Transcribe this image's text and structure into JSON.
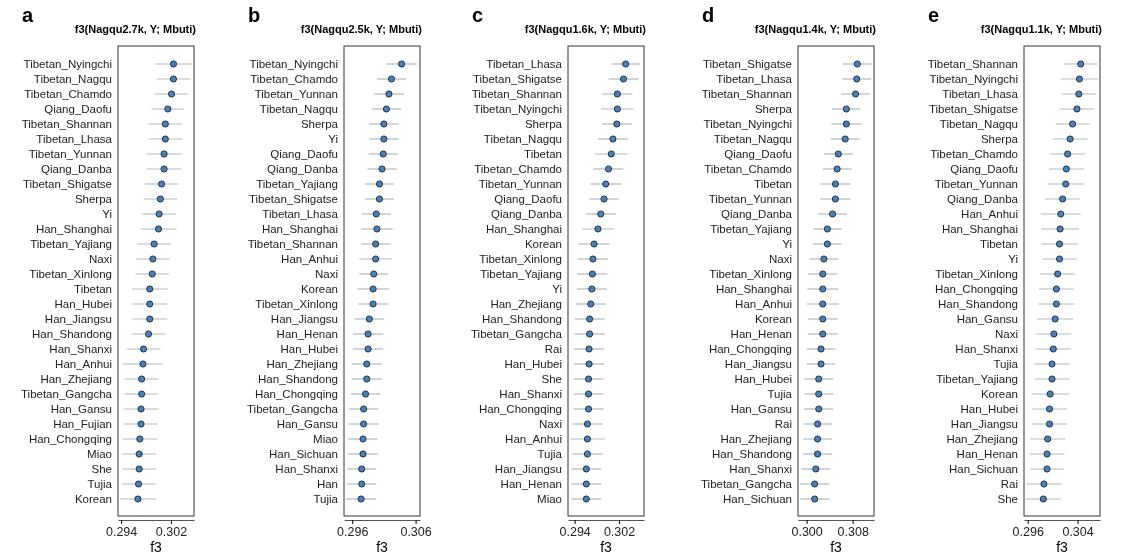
{
  "chart_data": [
    {
      "type": "scatter",
      "orientation": "horizontal",
      "marker": "circle",
      "title": "a",
      "subtitle": "f3(Nagqu2.7k, Y; Mbuti)",
      "xlabel": "f3",
      "xlim": [
        0.2935,
        0.3057
      ],
      "xticks": [
        0.294,
        0.302
      ],
      "color": "#4a7fb8",
      "categories": [
        "Tibetan_Nyingchi",
        "Tibetan_Nagqu",
        "Tibetan_Chamdo",
        "Qiang_Daofu",
        "Tibetan_Shannan",
        "Tibetan_Lhasa",
        "Tibetan_Yunnan",
        "Qiang_Danba",
        "Tibetan_Shigatse",
        "Sherpa",
        "Yi",
        "Han_Shanghai",
        "Tibetan_Yajiang",
        "Naxi",
        "Tibetan_Xinlong",
        "Tibetan",
        "Han_Hubei",
        "Han_Jiangsu",
        "Han_Shandong",
        "Han_Shanxi",
        "Han_Anhui",
        "Han_Zhejiang",
        "Tibetan_Gangcha",
        "Han_Gansu",
        "Han_Fujian",
        "Han_Chongqing",
        "Miao",
        "She",
        "Tujia",
        "Korean"
      ],
      "values": [
        0.3024,
        0.3024,
        0.3021,
        0.3015,
        0.3011,
        0.3011,
        0.3009,
        0.3009,
        0.3005,
        0.3003,
        0.3001,
        0.3,
        0.2993,
        0.2991,
        0.299,
        0.2986,
        0.2986,
        0.2986,
        0.2984,
        0.2976,
        0.2975,
        0.2973,
        0.2973,
        0.2972,
        0.2972,
        0.297,
        0.2969,
        0.2969,
        0.2968,
        0.2967
      ],
      "errors": [
        0.0029,
        0.0027,
        0.0027,
        0.0026,
        0.0027,
        0.0027,
        0.0028,
        0.0028,
        0.0027,
        0.0027,
        0.0027,
        0.0029,
        0.0027,
        0.0027,
        0.0027,
        0.0029,
        0.0028,
        0.0028,
        0.0027,
        0.0027,
        0.0032,
        0.0027,
        0.0027,
        0.0028,
        0.0027,
        0.0028,
        0.0027,
        0.0027,
        0.0027,
        0.0029
      ]
    },
    {
      "type": "scatter",
      "orientation": "horizontal",
      "marker": "circle",
      "title": "b",
      "subtitle": "f3(Nagqu2.5k, Y; Mbuti)",
      "xlabel": "f3",
      "xlim": [
        0.2947,
        0.3067
      ],
      "xticks": [
        0.296,
        0.306
      ],
      "color": "#4a7fb8",
      "categories": [
        "Tibetan_Nyingchi",
        "Tibetan_Chamdo",
        "Tibetan_Yunnan",
        "Tibetan_Nagqu",
        "Sherpa",
        "Yi",
        "Qiang_Daofu",
        "Qiang_Danba",
        "Tibetan_Yajiang",
        "Tibetan_Shigatse",
        "Tibetan_Lhasa",
        "Han_Shanghai",
        "Tibetan_Shannan",
        "Han_Anhui",
        "Naxi",
        "Korean",
        "Tibetan_Xinlong",
        "Han_Jiangsu",
        "Han_Henan",
        "Han_Hubei",
        "Han_Zhejiang",
        "Han_Shandong",
        "Han_Chongqing",
        "Tibetan_Gangcha",
        "Han_Gansu",
        "Miao",
        "Han_Sichuan",
        "Han_Shanxi",
        "Han",
        "Tujia"
      ],
      "values": [
        0.3038,
        0.3022,
        0.3018,
        0.3014,
        0.301,
        0.301,
        0.3009,
        0.3007,
        0.3003,
        0.3003,
        0.2998,
        0.2999,
        0.2997,
        0.2997,
        0.2994,
        0.2993,
        0.2993,
        0.2987,
        0.2985,
        0.2985,
        0.2983,
        0.2983,
        0.2981,
        0.2978,
        0.2978,
        0.2977,
        0.2977,
        0.2975,
        0.2975,
        0.2974
      ],
      "errors": [
        0.0024,
        0.0023,
        0.0024,
        0.0023,
        0.0023,
        0.0023,
        0.0023,
        0.0023,
        0.0023,
        0.0023,
        0.0023,
        0.0025,
        0.0023,
        0.0026,
        0.0023,
        0.0025,
        0.0023,
        0.0023,
        0.0024,
        0.0024,
        0.0024,
        0.0024,
        0.0023,
        0.0023,
        0.0024,
        0.0023,
        0.0024,
        0.0023,
        0.0023,
        0.0024
      ]
    },
    {
      "type": "scatter",
      "orientation": "horizontal",
      "marker": "circle",
      "title": "c",
      "subtitle": "f3(Nagqu1.6k, Y; Mbuti)",
      "xlabel": "f3",
      "xlim": [
        0.2928,
        0.3065
      ],
      "xticks": [
        0.294,
        0.302
      ],
      "color": "#4a7fb8",
      "categories": [
        "Tibetan_Lhasa",
        "Tibetan_Shigatse",
        "Tibetan_Shannan",
        "Tibetan_Nyingchi",
        "Sherpa",
        "Tibetan_Nagqu",
        "Tibetan",
        "Tibetan_Chamdo",
        "Tibetan_Yunnan",
        "Qiang_Daofu",
        "Qiang_Danba",
        "Han_Shanghai",
        "Korean",
        "Tibetan_Xinlong",
        "Tibetan_Yajiang",
        "Yi",
        "Han_Zhejiang",
        "Han_Shandong",
        "Tibetan_Gangcha",
        "Rai",
        "Han_Hubei",
        "She",
        "Han_Shanxi",
        "Han_Chongqing",
        "Naxi",
        "Han_Anhui",
        "Tujia",
        "Han_Jiangsu",
        "Han_Henan",
        "Miao"
      ],
      "values": [
        0.3032,
        0.3028,
        0.3017,
        0.3017,
        0.3016,
        0.3009,
        0.3006,
        0.3001,
        0.2996,
        0.2993,
        0.2987,
        0.2982,
        0.2975,
        0.2973,
        0.2972,
        0.2971,
        0.2969,
        0.2967,
        0.2967,
        0.2966,
        0.2966,
        0.2965,
        0.2965,
        0.2965,
        0.2963,
        0.2963,
        0.2963,
        0.2961,
        0.2961,
        0.2961
      ],
      "errors": [
        0.0026,
        0.0027,
        0.0027,
        0.0029,
        0.0027,
        0.0027,
        0.0029,
        0.0027,
        0.0028,
        0.0027,
        0.0027,
        0.0029,
        0.0028,
        0.0027,
        0.0027,
        0.0027,
        0.0027,
        0.0027,
        0.0027,
        0.0027,
        0.0027,
        0.0027,
        0.0027,
        0.0027,
        0.0027,
        0.0031,
        0.0027,
        0.0027,
        0.0027,
        0.0027
      ]
    },
    {
      "type": "scatter",
      "orientation": "horizontal",
      "marker": "circle",
      "title": "d",
      "subtitle": "f3(Nagqu1.4k, Y; Mbuti)",
      "xlabel": "f3",
      "xlim": [
        0.2985,
        0.3117
      ],
      "xticks": [
        {
          "value": 0.3,
          "label": "0.300"
        },
        0.308
      ],
      "color": "#4a7fb8",
      "categories": [
        "Tibetan_Shigatse",
        "Tibetan_Lhasa",
        "Tibetan_Shannan",
        "Sherpa",
        "Tibetan_Nyingchi",
        "Tibetan_Nagqu",
        "Qiang_Daofu",
        "Tibetan_Chamdo",
        "Tibetan",
        "Tibetan_Yunnan",
        "Qiang_Danba",
        "Tibetan_Yajiang",
        "Yi",
        "Naxi",
        "Tibetan_Xinlong",
        "Han_Shanghai",
        "Han_Anhui",
        "Korean",
        "Han_Henan",
        "Han_Chongqing",
        "Han_Jiangsu",
        "Han_Hubei",
        "Tujia",
        "Han_Gansu",
        "Rai",
        "Han_Zhejiang",
        "Han_Shandong",
        "Han_Shanxi",
        "Tibetan_Gangcha",
        "Han_Sichuan"
      ],
      "values": [
        0.3088,
        0.3087,
        0.3085,
        0.3069,
        0.3069,
        0.3067,
        0.3055,
        0.3053,
        0.305,
        0.305,
        0.3045,
        0.3036,
        0.3036,
        0.303,
        0.3028,
        0.3028,
        0.3028,
        0.3028,
        0.3028,
        0.3025,
        0.3025,
        0.3021,
        0.3021,
        0.3021,
        0.3019,
        0.3019,
        0.3019,
        0.3016,
        0.3014,
        0.3014
      ],
      "errors": [
        0.0025,
        0.0025,
        0.0025,
        0.0025,
        0.0026,
        0.0025,
        0.0025,
        0.0025,
        0.0026,
        0.0026,
        0.0025,
        0.0025,
        0.0025,
        0.0025,
        0.0025,
        0.0027,
        0.0028,
        0.0026,
        0.0026,
        0.0025,
        0.0025,
        0.0025,
        0.0025,
        0.0025,
        0.0025,
        0.0025,
        0.0025,
        0.0025,
        0.0025,
        0.0025
      ]
    },
    {
      "type": "scatter",
      "orientation": "horizontal",
      "marker": "circle",
      "title": "e",
      "subtitle": "f3(Nagqu1.1k, Y; Mbuti)",
      "xlabel": "f3",
      "xlim": [
        0.2954,
        0.3076
      ],
      "xticks": [
        0.296,
        0.304
      ],
      "color": "#4a7fb8",
      "categories": [
        "Tibetan_Shannan",
        "Tibetan_Nyingchi",
        "Tibetan_Lhasa",
        "Tibetan_Shigatse",
        "Tibetan_Nagqu",
        "Sherpa",
        "Tibetan_Chamdo",
        "Qiang_Daofu",
        "Tibetan_Yunnan",
        "Qiang_Danba",
        "Han_Anhui",
        "Han_Shanghai",
        "Tibetan",
        "Yi",
        "Tibetan_Xinlong",
        "Han_Chongqing",
        "Han_Shandong",
        "Han_Gansu",
        "Naxi",
        "Han_Shanxi",
        "Tujia",
        "Tibetan_Yajiang",
        "Korean",
        "Han_Hubei",
        "Han_Jiangsu",
        "Han_Zhejiang",
        "Han_Henan",
        "Han_Sichuan",
        "Rai",
        "She"
      ],
      "values": [
        0.3045,
        0.3043,
        0.3042,
        0.3039,
        0.3032,
        0.3028,
        0.3024,
        0.3022,
        0.3021,
        0.3016,
        0.3013,
        0.3012,
        0.3011,
        0.3011,
        0.3008,
        0.3006,
        0.3006,
        0.3004,
        0.3002,
        0.3001,
        0.2999,
        0.2999,
        0.2996,
        0.2995,
        0.2995,
        0.2992,
        0.2991,
        0.2991,
        0.2986,
        0.2985
      ],
      "errors": [
        0.0027,
        0.003,
        0.0028,
        0.0028,
        0.0027,
        0.0028,
        0.0028,
        0.0028,
        0.0029,
        0.0028,
        0.0032,
        0.003,
        0.003,
        0.0028,
        0.0028,
        0.0028,
        0.0029,
        0.0029,
        0.0028,
        0.0028,
        0.0028,
        0.0028,
        0.003,
        0.0028,
        0.0028,
        0.0028,
        0.0028,
        0.0027,
        0.0028,
        0.0028
      ]
    }
  ]
}
